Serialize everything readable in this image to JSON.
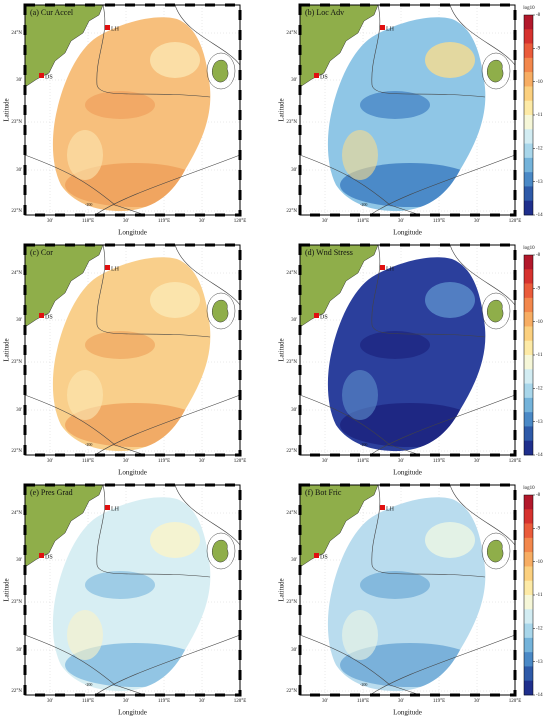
{
  "figure": {
    "axis_labels": {
      "x": "Longitude",
      "y": "Latitude"
    },
    "lat_ticks": [
      "22°N",
      "30'",
      "23°N",
      "30'",
      "24°N"
    ],
    "lon_ticks": [
      "30'",
      "118°E",
      "30'",
      "119°E",
      "30'",
      "120°E"
    ],
    "places": [
      "LH",
      "DS"
    ],
    "contour_label": "-200",
    "colorbar": {
      "title": "log10",
      "ticks": [
        -8,
        -9,
        -10,
        -11,
        -12,
        -13,
        -14
      ],
      "colors": [
        "#b2182b",
        "#d6322e",
        "#ea5b3a",
        "#f2874c",
        "#f7ad63",
        "#fbd07f",
        "#fdeaa6",
        "#f6f7d8",
        "#d2ecf2",
        "#a8d6ea",
        "#74b3da",
        "#4a89c6",
        "#2e5aa8",
        "#1f2f8c"
      ]
    },
    "panels": [
      {
        "label": "(a) Cur Accel",
        "field_colors": [
          "#f7bf7c",
          "#efa05c",
          "#fbe6b0"
        ]
      },
      {
        "label": "(b) Loc Adv",
        "field_colors": [
          "#8fc6e6",
          "#3f7fc2",
          "#f8dc8e"
        ]
      },
      {
        "label": "(c) Cor",
        "field_colors": [
          "#f9cf8b",
          "#f0a55f",
          "#fbe8b4"
        ]
      },
      {
        "label": "(d) Wnd Stress",
        "field_colors": [
          "#2b3f9c",
          "#1c237f",
          "#5d8fcc"
        ]
      },
      {
        "label": "(e) Pres Grad",
        "field_colors": [
          "#d7eef3",
          "#86bde0",
          "#fbf4c8"
        ]
      },
      {
        "label": "(f) Bot Fric",
        "field_colors": [
          "#b9dcee",
          "#6ea9d6",
          "#eef7e4"
        ]
      }
    ]
  }
}
